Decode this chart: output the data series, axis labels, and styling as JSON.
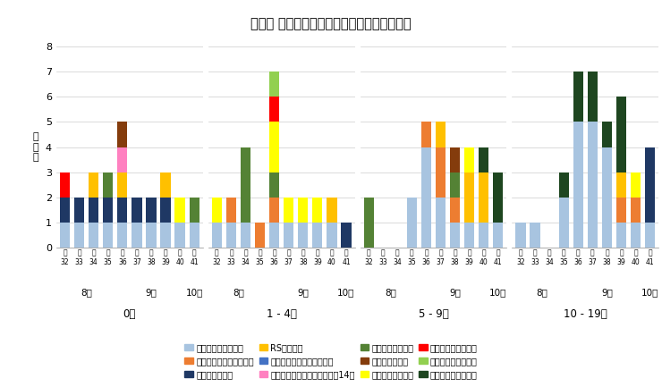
{
  "title": "年齢別 病原体検出数の推移（不検出を除く）",
  "ylabel": "検\n出\n数",
  "ylim": [
    0,
    8
  ],
  "yticks": [
    0,
    1,
    2,
    3,
    4,
    5,
    6,
    7,
    8
  ],
  "weeks": [
    32,
    33,
    34,
    35,
    36,
    37,
    38,
    39,
    40,
    41
  ],
  "age_groups": [
    "0歳",
    "1 - 4歳",
    "5 - 9歳",
    "10 - 19歳"
  ],
  "pathogens": [
    "新型コロナウイルス",
    "ライノウイルス",
    "インフルエンザウイルス",
    "RSウイルス",
    "ヒトメタニューモウイルス",
    "パラインフルエンザウイルス14型",
    "ヒトボカウイルス",
    "アデノウイルス",
    "エンテロウイルス",
    "ヒトパレコウイルス",
    "ヒトコロナウイルス",
    "肺炎マイコプラズマ"
  ],
  "pathogen_colors": {
    "新型コロナウイルス": "#a8c4e0",
    "インフルエンザウイルス": "#ed7d31",
    "ライノウイルス": "#1f3864",
    "RSウイルス": "#ffc000",
    "ヒトメタニューモウイルス": "#4472c4",
    "パラインフルエンザウイルス14型": "#ff80c0",
    "ヒトボカウイルス": "#548235",
    "アデノウイルス": "#843c0c",
    "エンテロウイルス": "#ffff00",
    "ヒトパレコウイルス": "#ff0000",
    "ヒトコロナウイルス": "#92d050",
    "肺炎マイコプラズマ": "#1e4620"
  },
  "data": {
    "0歳": {
      "32": {
        "新型コロナウイルス": 1,
        "ライノウイルス": 1,
        "ヒトパレコウイルス": 1
      },
      "33": {
        "新型コロナウイルス": 1,
        "ライノウイルス": 1
      },
      "34": {
        "新型コロナウイルス": 1,
        "RSウイルス": 1,
        "ライノウイルス": 1
      },
      "35": {
        "新型コロナウイルス": 1,
        "ライノウイルス": 1,
        "ヒトボカウイルス": 1
      },
      "36": {
        "新型コロナウイルス": 1,
        "ライノウイルス": 1,
        "パラインフルエンザウイルス14型": 1,
        "アデノウイルス": 1,
        "RSウイルス": 1
      },
      "37": {
        "新型コロナウイルス": 1,
        "ライノウイルス": 1
      },
      "38": {
        "新型コロナウイルス": 1,
        "ライノウイルス": 1
      },
      "39": {
        "新型コロナウイルス": 1,
        "ライノウイルス": 1,
        "RSウイルス": 1
      },
      "40": {
        "新型コロナウイルス": 1,
        "エンテロウイルス": 1
      },
      "41": {
        "新型コロナウイルス": 1,
        "ヒトボカウイルス": 1
      }
    },
    "1 - 4歳": {
      "32": {
        "新型コロナウイルス": 1,
        "エンテロウイルス": 1
      },
      "33": {
        "新型コロナウイルス": 1,
        "インフルエンザウイルス": 1
      },
      "34": {
        "新型コロナウイルス": 1,
        "ヒトボカウイルス": 3
      },
      "35": {
        "インフルエンザウイルス": 1
      },
      "36": {
        "新型コロナウイルス": 1,
        "インフルエンザウイルス": 1,
        "ヒトコロナウイルス": 1,
        "ヒトボカウイルス": 1,
        "エンテロウイルス": 2,
        "ヒトパレコウイルス": 1
      },
      "37": {
        "新型コロナウイルス": 1,
        "エンテロウイルス": 1
      },
      "38": {
        "新型コロナウイルス": 1,
        "エンテロウイルス": 1
      },
      "39": {
        "新型コロナウイルス": 1,
        "エンテロウイルス": 1
      },
      "40": {
        "新型コロナウイルス": 1,
        "RSウイルス": 1
      },
      "41": {
        "ライノウイルス": 1
      }
    },
    "5 - 9歳": {
      "32": {
        "ヒトボカウイルス": 2
      },
      "33": {},
      "34": {},
      "35": {
        "新型コロナウイルス": 2
      },
      "36": {
        "新型コロナウイルス": 4,
        "インフルエンザウイルス": 1
      },
      "37": {
        "新型コロナウイルス": 2,
        "インフルエンザウイルス": 2,
        "RSウイルス": 1
      },
      "38": {
        "新型コロナウイルス": 1,
        "インフルエンザウイルス": 1,
        "アデノウイルス": 1,
        "ヒトボカウイルス": 1
      },
      "39": {
        "新型コロナウイルス": 1,
        "RSウイルス": 2,
        "エンテロウイルス": 1
      },
      "40": {
        "新型コロナウイルス": 1,
        "RSウイルス": 2,
        "肺炎マイコプラズマ": 1
      },
      "41": {
        "新型コロナウイルス": 1,
        "肺炎マイコプラズマ": 2
      }
    },
    "10 - 19歳": {
      "32": {
        "新型コロナウイルス": 1
      },
      "33": {
        "新型コロナウイルス": 1
      },
      "34": {},
      "35": {
        "新型コロナウイルス": 2,
        "肺炎マイコプラズマ": 1
      },
      "36": {
        "新型コロナウイルス": 5,
        "肺炎マイコプラズマ": 2
      },
      "37": {
        "新型コロナウイルス": 5,
        "肺炎マイコプラズマ": 2
      },
      "38": {
        "新型コロナウイルス": 4,
        "肺炎マイコプラズマ": 1
      },
      "39": {
        "新型コロナウイルス": 1,
        "インフルエンザウイルス": 1,
        "RSウイルス": 1,
        "肺炎マイコプラズマ": 3
      },
      "40": {
        "新型コロナウイルス": 1,
        "インフルエンザウイルス": 1,
        "エンテロウイルス": 1
      },
      "41": {
        "新型コロナウイルス": 1,
        "ライノウイルス": 3
      }
    }
  },
  "month_positions": {
    "0歳": {
      "8月": [
        32,
        33,
        34,
        35
      ],
      "9月": [
        36,
        37,
        38,
        39,
        40
      ],
      "10月": [
        41
      ]
    },
    "1 - 4歳": {
      "8月": [
        32,
        33,
        34,
        35
      ],
      "9月": [
        36,
        37,
        38,
        39,
        40
      ],
      "10月": [
        41
      ]
    },
    "5 - 9歳": {
      "8月": [
        32,
        33,
        34,
        35
      ],
      "9月": [
        36,
        37,
        38,
        39,
        40
      ],
      "10月": [
        41
      ]
    },
    "10 - 19歳": {
      "8月": [
        32,
        33,
        34,
        35
      ],
      "9月": [
        36,
        37,
        38,
        39,
        40
      ],
      "10月": [
        41
      ]
    }
  },
  "legend_order": [
    [
      "新型コロナウイルス",
      "インフルエンザウイルス",
      "ライノウイルス",
      "RSウイルス"
    ],
    [
      "ヒトメタニューモウイルス",
      "パラインフルエンザウイルス14型",
      "ヒトボカウイルス",
      "アデノウイルス"
    ],
    [
      "エンテロウイルス",
      "ヒトパレコウイルス",
      "ヒトコロナウイルス",
      "肺炎マイコプラズマ"
    ]
  ]
}
